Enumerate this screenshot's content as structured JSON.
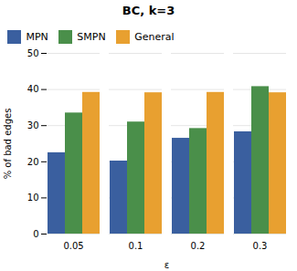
{
  "chart_data": {
    "type": "bar",
    "title": "BC, k=3",
    "xlabel": "ε",
    "ylabel": "% of bad edges",
    "categories": [
      "0.05",
      "0.1",
      "0.2",
      "0.3"
    ],
    "series": [
      {
        "name": "MPN",
        "color": "#3a5f9f",
        "values": [
          22.5,
          20.2,
          26.5,
          28.3
        ]
      },
      {
        "name": "SMPN",
        "color": "#4a8f4a",
        "values": [
          33.5,
          31.0,
          29.2,
          40.8
        ]
      },
      {
        "name": "General",
        "color": "#e8a030",
        "values": [
          39.2,
          39.1,
          39.2,
          39.1
        ]
      }
    ],
    "ylim": [
      0,
      50
    ],
    "yticks": [
      0,
      10,
      20,
      30,
      40,
      50
    ],
    "grid": true,
    "legend": "upper left"
  }
}
